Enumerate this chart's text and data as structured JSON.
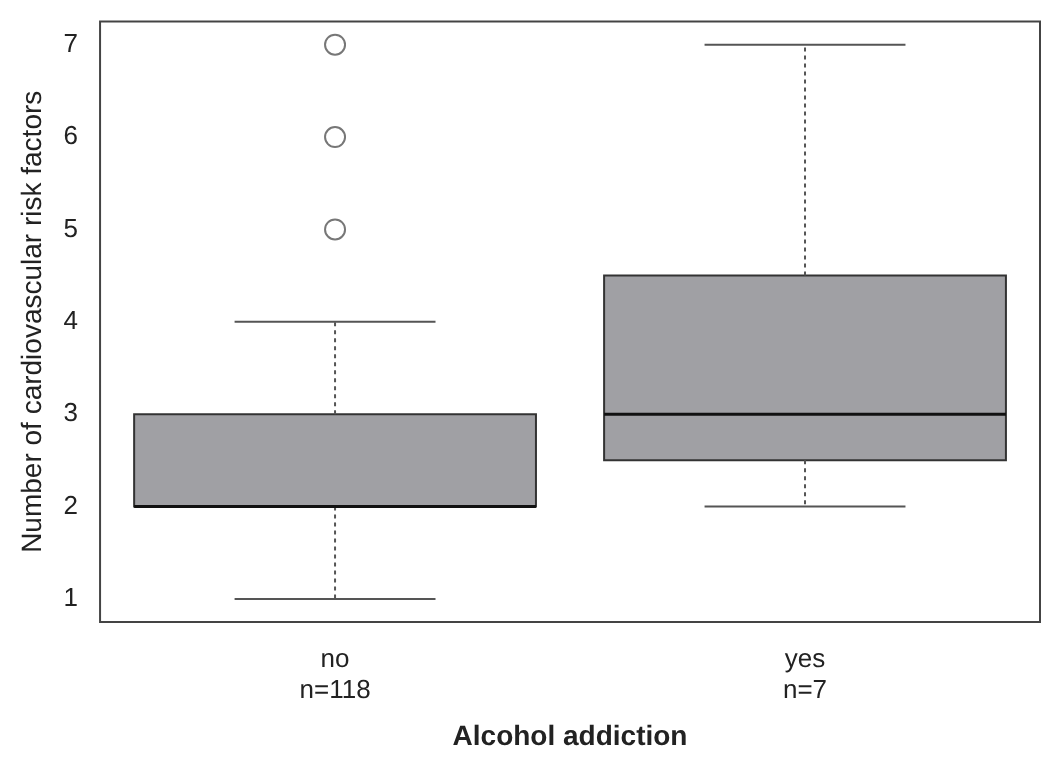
{
  "chart_data": {
    "type": "box",
    "xlabel": "Alcohol addiction",
    "ylabel": "Number of cardiovascular risk factors",
    "categories": [
      "no\nn=118",
      "yes\nn=7"
    ],
    "color": "#a0a0a4",
    "boxes": [
      {
        "low": 1,
        "q1": 2,
        "median": 2,
        "q3": 3,
        "high": 4,
        "outliers": [
          5,
          6,
          7
        ]
      },
      {
        "low": 2,
        "q1": 2.5,
        "median": 3,
        "q3": 4.5,
        "high": 7
      }
    ],
    "ylim": [
      0.75,
      7.25
    ],
    "yticks": [
      1,
      2,
      3,
      4,
      5,
      6,
      7
    ],
    "grid": false,
    "legend": false
  }
}
